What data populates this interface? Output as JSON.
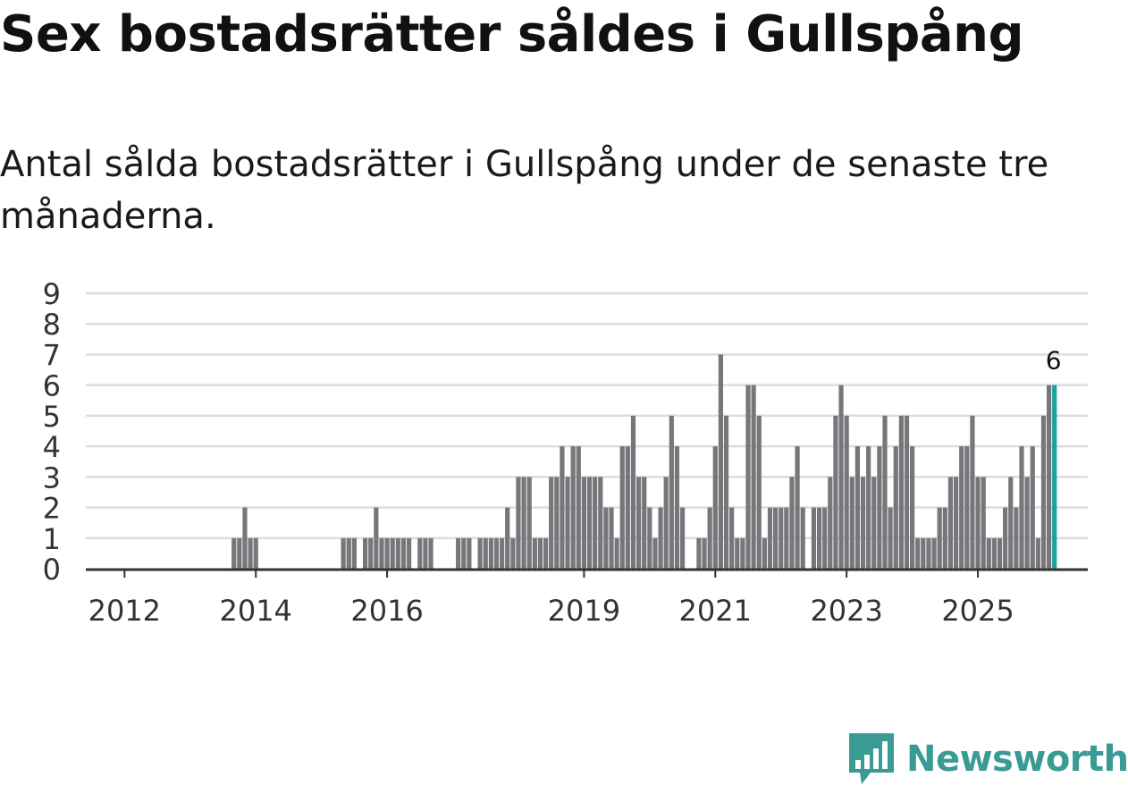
{
  "header": {
    "title": "Sex bostadsrätter såldes i Gullspång",
    "subtitle": "Antal sålda bostadsrätter i Gullspång under de senaste tre månaderna."
  },
  "brand": {
    "name": "Newsworthy",
    "color": "#3a9b94"
  },
  "colors": {
    "bar": "#76767b",
    "highlight": "#1aa39a",
    "grid": "#dddddd",
    "axis": "#333333"
  },
  "chart_data": {
    "type": "bar",
    "title": "Sex bostadsrätter såldes i Gullspång",
    "xlabel": "",
    "ylabel": "",
    "ylim": [
      0,
      9
    ],
    "y_ticks": [
      "0",
      "1",
      "2",
      "3",
      "4",
      "5",
      "6",
      "7",
      "8",
      "9"
    ],
    "x_tick_labels": [
      {
        "label": "2012",
        "month_index": 6
      },
      {
        "label": "2014",
        "month_index": 30
      },
      {
        "label": "2016",
        "month_index": 54
      },
      {
        "label": "2019",
        "month_index": 90
      },
      {
        "label": "2021",
        "month_index": 114
      },
      {
        "label": "2023",
        "month_index": 138
      },
      {
        "label": "2025",
        "month_index": 162
      }
    ],
    "start_month": "2011-01",
    "values": [
      0,
      0,
      0,
      0,
      0,
      0,
      0,
      0,
      0,
      0,
      0,
      0,
      0,
      0,
      0,
      0,
      0,
      0,
      0,
      0,
      0,
      0,
      0,
      0,
      0,
      0,
      1,
      1,
      2,
      1,
      1,
      0,
      0,
      0,
      0,
      0,
      0,
      0,
      0,
      0,
      0,
      0,
      0,
      0,
      0,
      0,
      1,
      1,
      1,
      0,
      1,
      1,
      2,
      1,
      1,
      1,
      1,
      1,
      1,
      0,
      1,
      1,
      1,
      0,
      0,
      0,
      0,
      1,
      1,
      1,
      0,
      1,
      1,
      1,
      1,
      1,
      2,
      1,
      3,
      3,
      3,
      1,
      1,
      1,
      3,
      3,
      4,
      3,
      4,
      4,
      3,
      3,
      3,
      3,
      2,
      2,
      1,
      4,
      4,
      5,
      3,
      3,
      2,
      1,
      2,
      3,
      5,
      4,
      2,
      0,
      0,
      1,
      1,
      2,
      4,
      7,
      5,
      2,
      1,
      1,
      6,
      6,
      5,
      1,
      2,
      2,
      2,
      2,
      3,
      4,
      2,
      0,
      2,
      2,
      2,
      3,
      5,
      6,
      5,
      3,
      4,
      3,
      4,
      3,
      4,
      5,
      2,
      4,
      5,
      5,
      4,
      1,
      1,
      1,
      1,
      2,
      2,
      3,
      3,
      4,
      4,
      5,
      3,
      3,
      1,
      1,
      1,
      2,
      3,
      2,
      4,
      3,
      4,
      1,
      5,
      6,
      6
    ],
    "highlight_last": true,
    "annotation": "6"
  }
}
